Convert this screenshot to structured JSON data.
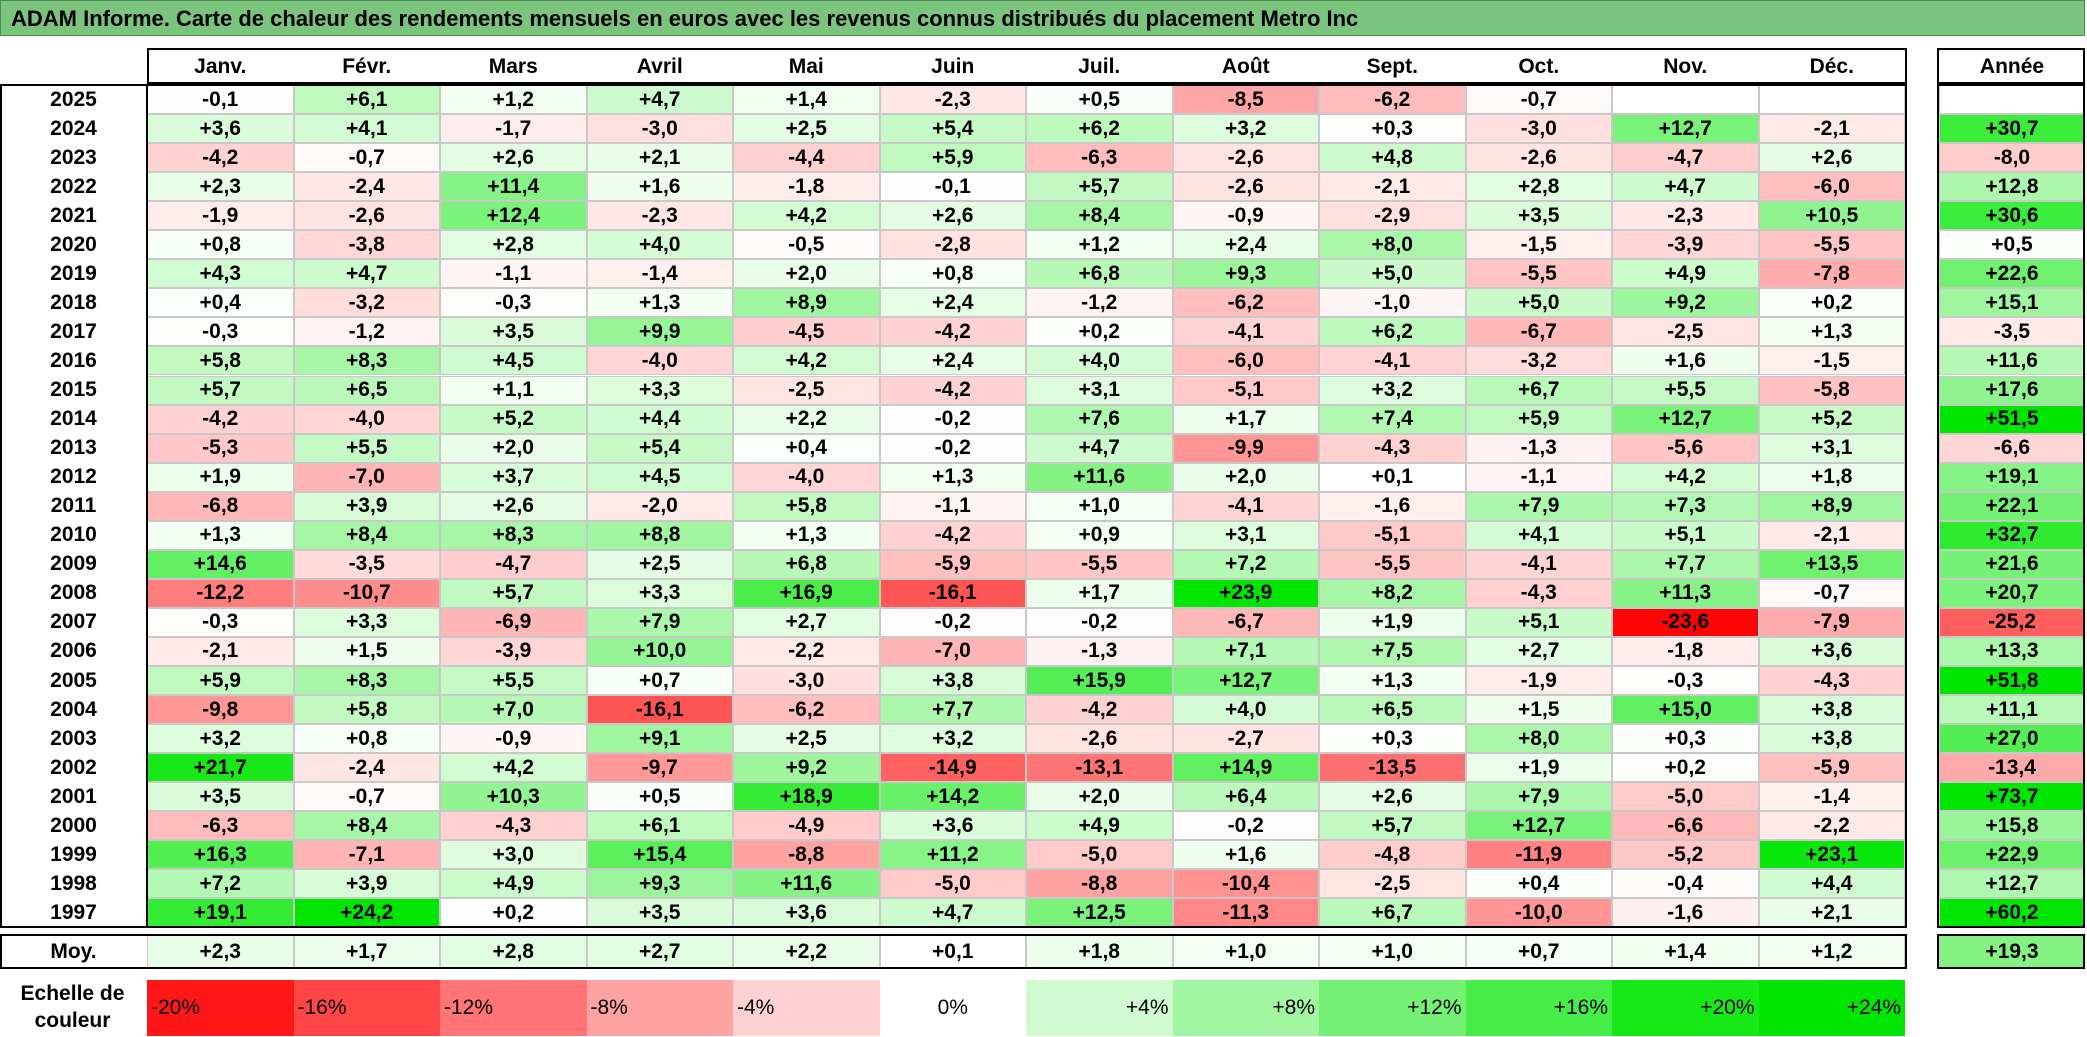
{
  "title": "ADAM Informe. Carte de chaleur des rendements mensuels en euros avec les revenus connus distribués du placement Metro Inc",
  "months": [
    "Janv.",
    "Févr.",
    "Mars",
    "Avril",
    "Mai",
    "Juin",
    "Juil.",
    "Août",
    "Sept.",
    "Oct.",
    "Nov.",
    "Déc."
  ],
  "year_header": "Année",
  "avg_label": "Moy.",
  "legend_title": "Echelle de couleur",
  "colors": {
    "neg_max": "#ff0000",
    "zero": "#ffffff",
    "pos_max": "#00e600",
    "title_bg": "#7ac47e"
  },
  "chart_data": {
    "type": "heatmap",
    "title": "ADAM Informe. Carte de chaleur des rendements mensuels en euros avec les revenus connus distribués du placement Metro Inc",
    "x_categories": [
      "Janv.",
      "Févr.",
      "Mars",
      "Avril",
      "Mai",
      "Juin",
      "Juil.",
      "Août",
      "Sept.",
      "Oct.",
      "Nov.",
      "Déc."
    ],
    "rows": [
      {
        "year": "2025",
        "values": [
          "-0,1",
          "+6,1",
          "+1,2",
          "+4,7",
          "+1,4",
          "-2,3",
          "+0,5",
          "-8,5",
          "-6,2",
          "-0,7",
          "",
          ""
        ],
        "annual": ""
      },
      {
        "year": "2024",
        "values": [
          "+3,6",
          "+4,1",
          "-1,7",
          "-3,0",
          "+2,5",
          "+5,4",
          "+6,2",
          "+3,2",
          "+0,3",
          "-3,0",
          "+12,7",
          "-2,1"
        ],
        "annual": "+30,7"
      },
      {
        "year": "2023",
        "values": [
          "-4,2",
          "-0,7",
          "+2,6",
          "+2,1",
          "-4,4",
          "+5,9",
          "-6,3",
          "-2,6",
          "+4,8",
          "-2,6",
          "-4,7",
          "+2,6"
        ],
        "annual": "-8,0"
      },
      {
        "year": "2022",
        "values": [
          "+2,3",
          "-2,4",
          "+11,4",
          "+1,6",
          "-1,8",
          "-0,1",
          "+5,7",
          "-2,6",
          "-2,1",
          "+2,8",
          "+4,7",
          "-6,0"
        ],
        "annual": "+12,8"
      },
      {
        "year": "2021",
        "values": [
          "-1,9",
          "-2,6",
          "+12,4",
          "-2,3",
          "+4,2",
          "+2,6",
          "+8,4",
          "-0,9",
          "-2,9",
          "+3,5",
          "-2,3",
          "+10,5"
        ],
        "annual": "+30,6"
      },
      {
        "year": "2020",
        "values": [
          "+0,8",
          "-3,8",
          "+2,8",
          "+4,0",
          "-0,5",
          "-2,8",
          "+1,2",
          "+2,4",
          "+8,0",
          "-1,5",
          "-3,9",
          "-5,5"
        ],
        "annual": "+0,5"
      },
      {
        "year": "2019",
        "values": [
          "+4,3",
          "+4,7",
          "-1,1",
          "-1,4",
          "+2,0",
          "+0,8",
          "+6,8",
          "+9,3",
          "+5,0",
          "-5,5",
          "+4,9",
          "-7,8"
        ],
        "annual": "+22,6"
      },
      {
        "year": "2018",
        "values": [
          "+0,4",
          "-3,2",
          "-0,3",
          "+1,3",
          "+8,9",
          "+2,4",
          "-1,2",
          "-6,2",
          "-1,0",
          "+5,0",
          "+9,2",
          "+0,2"
        ],
        "annual": "+15,1"
      },
      {
        "year": "2017",
        "values": [
          "-0,3",
          "-1,2",
          "+3,5",
          "+9,9",
          "-4,5",
          "-4,2",
          "+0,2",
          "-4,1",
          "+6,2",
          "-6,7",
          "-2,5",
          "+1,3"
        ],
        "annual": "-3,5"
      },
      {
        "year": "2016",
        "values": [
          "+5,8",
          "+8,3",
          "+4,5",
          "-4,0",
          "+4,2",
          "+2,4",
          "+4,0",
          "-6,0",
          "-4,1",
          "-3,2",
          "+1,6",
          "-1,5"
        ],
        "annual": "+11,6"
      },
      {
        "year": "2015",
        "values": [
          "+5,7",
          "+6,5",
          "+1,1",
          "+3,3",
          "-2,5",
          "-4,2",
          "+3,1",
          "-5,1",
          "+3,2",
          "+6,7",
          "+5,5",
          "-5,8"
        ],
        "annual": "+17,6"
      },
      {
        "year": "2014",
        "values": [
          "-4,2",
          "-4,0",
          "+5,2",
          "+4,4",
          "+2,2",
          "-0,2",
          "+7,6",
          "+1,7",
          "+7,4",
          "+5,9",
          "+12,7",
          "+5,2"
        ],
        "annual": "+51,5"
      },
      {
        "year": "2013",
        "values": [
          "-5,3",
          "+5,5",
          "+2,0",
          "+5,4",
          "+0,4",
          "-0,2",
          "+4,7",
          "-9,9",
          "-4,3",
          "-1,3",
          "-5,6",
          "+3,1"
        ],
        "annual": "-6,6"
      },
      {
        "year": "2012",
        "values": [
          "+1,9",
          "-7,0",
          "+3,7",
          "+4,5",
          "-4,0",
          "+1,3",
          "+11,6",
          "+2,0",
          "+0,1",
          "-1,1",
          "+4,2",
          "+1,8"
        ],
        "annual": "+19,1"
      },
      {
        "year": "2011",
        "values": [
          "-6,8",
          "+3,9",
          "+2,6",
          "-2,0",
          "+5,8",
          "-1,1",
          "+1,0",
          "-4,1",
          "-1,6",
          "+7,9",
          "+7,3",
          "+8,9"
        ],
        "annual": "+22,1"
      },
      {
        "year": "2010",
        "values": [
          "+1,3",
          "+8,4",
          "+8,3",
          "+8,8",
          "+1,3",
          "-4,2",
          "+0,9",
          "+3,1",
          "-5,1",
          "+4,1",
          "+5,1",
          "-2,1"
        ],
        "annual": "+32,7"
      },
      {
        "year": "2009",
        "values": [
          "+14,6",
          "-3,5",
          "-4,7",
          "+2,5",
          "+6,8",
          "-5,9",
          "-5,5",
          "+7,2",
          "-5,5",
          "-4,1",
          "+7,7",
          "+13,5"
        ],
        "annual": "+21,6"
      },
      {
        "year": "2008",
        "values": [
          "-12,2",
          "-10,7",
          "+5,7",
          "+3,3",
          "+16,9",
          "-16,1",
          "+1,7",
          "+23,9",
          "+8,2",
          "-4,3",
          "+11,3",
          "-0,7"
        ],
        "annual": "+20,7"
      },
      {
        "year": "2007",
        "values": [
          "-0,3",
          "+3,3",
          "-6,9",
          "+7,9",
          "+2,7",
          "-0,2",
          "-0,2",
          "-6,7",
          "+1,9",
          "+5,1",
          "-23,6",
          "-7,9"
        ],
        "annual": "-25,2"
      },
      {
        "year": "2006",
        "values": [
          "-2,1",
          "+1,5",
          "-3,9",
          "+10,0",
          "-2,2",
          "-7,0",
          "-1,3",
          "+7,1",
          "+7,5",
          "+2,7",
          "-1,8",
          "+3,6"
        ],
        "annual": "+13,3"
      },
      {
        "year": "2005",
        "values": [
          "+5,9",
          "+8,3",
          "+5,5",
          "+0,7",
          "-3,0",
          "+3,8",
          "+15,9",
          "+12,7",
          "+1,3",
          "-1,9",
          "-0,3",
          "-4,3"
        ],
        "annual": "+51,8"
      },
      {
        "year": "2004",
        "values": [
          "-9,8",
          "+5,8",
          "+7,0",
          "-16,1",
          "-6,2",
          "+7,7",
          "-4,2",
          "+4,0",
          "+6,5",
          "+1,5",
          "+15,0",
          "+3,8"
        ],
        "annual": "+11,1"
      },
      {
        "year": "2003",
        "values": [
          "+3,2",
          "+0,8",
          "-0,9",
          "+9,1",
          "+2,5",
          "+3,2",
          "-2,6",
          "-2,7",
          "+0,3",
          "+8,0",
          "+0,3",
          "+3,8"
        ],
        "annual": "+27,0"
      },
      {
        "year": "2002",
        "values": [
          "+21,7",
          "-2,4",
          "+4,2",
          "-9,7",
          "+9,2",
          "-14,9",
          "-13,1",
          "+14,9",
          "-13,5",
          "+1,9",
          "+0,2",
          "-5,9"
        ],
        "annual": "-13,4"
      },
      {
        "year": "2001",
        "values": [
          "+3,5",
          "-0,7",
          "+10,3",
          "+0,5",
          "+18,9",
          "+14,2",
          "+2,0",
          "+6,4",
          "+2,6",
          "+7,9",
          "-5,0",
          "-1,4"
        ],
        "annual": "+73,7"
      },
      {
        "year": "2000",
        "values": [
          "-6,3",
          "+8,4",
          "-4,3",
          "+6,1",
          "-4,9",
          "+3,6",
          "+4,9",
          "-0,2",
          "+5,7",
          "+12,7",
          "-6,6",
          "-2,2"
        ],
        "annual": "+15,8"
      },
      {
        "year": "1999",
        "values": [
          "+16,3",
          "-7,1",
          "+3,0",
          "+15,4",
          "-8,8",
          "+11,2",
          "-5,0",
          "+1,6",
          "-4,8",
          "-11,9",
          "-5,2",
          "+23,1"
        ],
        "annual": "+22,9"
      },
      {
        "year": "1998",
        "values": [
          "+7,2",
          "+3,9",
          "+4,9",
          "+9,3",
          "+11,6",
          "-5,0",
          "-8,8",
          "-10,4",
          "-2,5",
          "+0,4",
          "-0,4",
          "+4,4"
        ],
        "annual": "+12,7"
      },
      {
        "year": "1997",
        "values": [
          "+19,1",
          "+24,2",
          "+0,2",
          "+3,5",
          "+3,6",
          "+4,7",
          "+12,5",
          "-11,3",
          "+6,7",
          "-10,0",
          "-1,6",
          "+2,1"
        ],
        "annual": "+60,2"
      }
    ],
    "average": {
      "values": [
        "+2,3",
        "+1,7",
        "+2,8",
        "+2,7",
        "+2,2",
        "+0,1",
        "+1,8",
        "+1,0",
        "+1,0",
        "+0,7",
        "+1,4",
        "+1,2"
      ],
      "annual": "+19,3"
    },
    "legend": [
      "-20%",
      "-16%",
      "-12%",
      "-8%",
      "-4%",
      "0%",
      "+4%",
      "+8%",
      "+12%",
      "+16%",
      "+20%",
      "+24%"
    ]
  }
}
